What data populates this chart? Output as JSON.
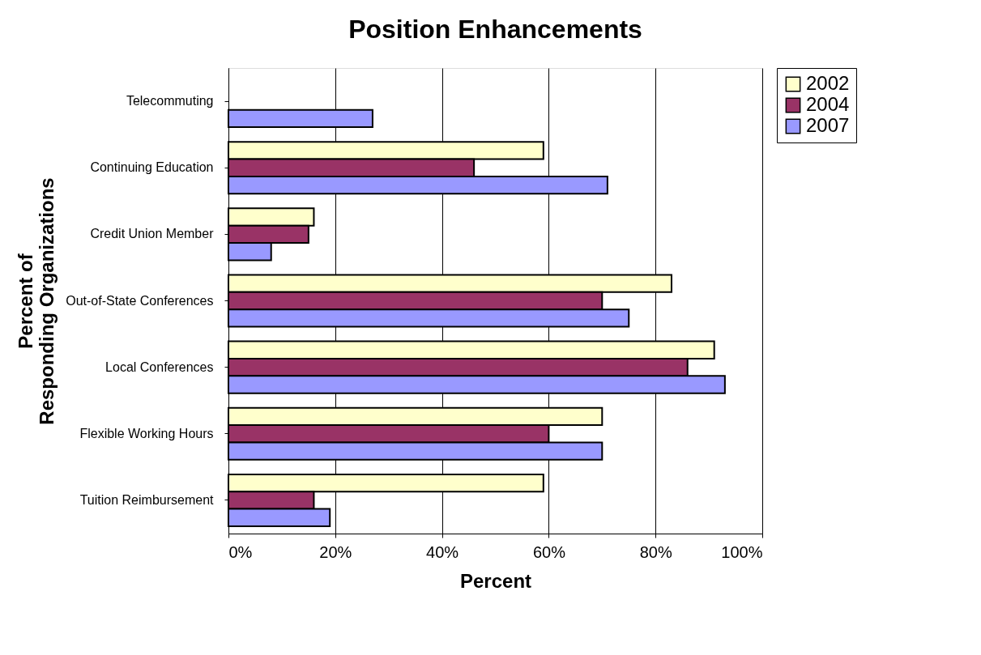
{
  "chart_data": {
    "type": "bar",
    "orientation": "horizontal",
    "title": "Position Enhancements",
    "xlabel": "Percent",
    "ylabel": "Percent of Responding Organizations",
    "categories": [
      "Telecommuting",
      "Continuing Education",
      "Credit Union Member",
      "Out-of-State Conferences",
      "Local Conferences",
      "Flexible Working Hours",
      "Tuition Reimbursement"
    ],
    "series": [
      {
        "name": "2002",
        "color": "#ffffcc",
        "values": [
          null,
          59,
          16,
          83,
          91,
          70,
          59
        ]
      },
      {
        "name": "2004",
        "color": "#993366",
        "values": [
          null,
          46,
          15,
          70,
          86,
          60,
          16
        ]
      },
      {
        "name": "2007",
        "color": "#9999ff",
        "values": [
          27,
          71,
          8,
          75,
          93,
          70,
          19
        ]
      }
    ],
    "xlim": [
      0,
      100
    ],
    "xticks": [
      {
        "value": 0,
        "label": "0%"
      },
      {
        "value": 20,
        "label": "20%"
      },
      {
        "value": 40,
        "label": "40%"
      },
      {
        "value": 60,
        "label": "60%"
      },
      {
        "value": 80,
        "label": "80%"
      },
      {
        "value": 100,
        "label": "100%"
      }
    ],
    "grid": "x",
    "legend": "right"
  }
}
